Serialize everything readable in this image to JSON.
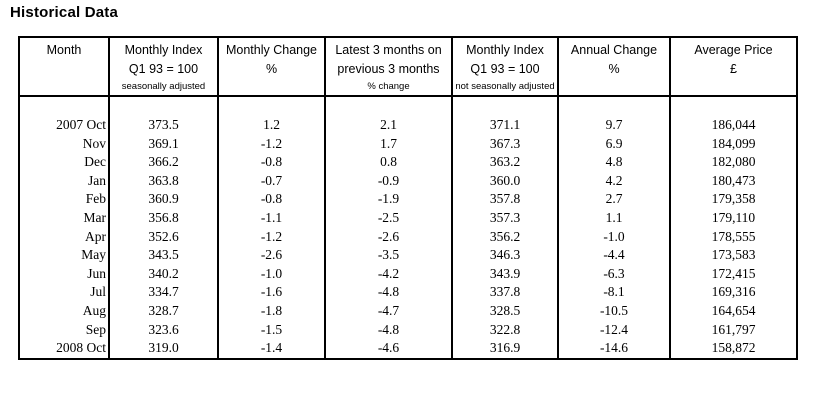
{
  "title": "Historical Data",
  "table": {
    "columns": [
      {
        "line1": "Month",
        "line2": "",
        "note": ""
      },
      {
        "line1": "Monthly Index",
        "line2": "Q1 93 = 100",
        "note": "seasonally adjusted"
      },
      {
        "line1": "Monthly Change",
        "line2": "%",
        "note": ""
      },
      {
        "line1": "Latest 3 months on",
        "line2": "previous 3 months",
        "note": "% change"
      },
      {
        "line1": "Monthly Index",
        "line2": "Q1 93 = 100",
        "note": "not seasonally adjusted"
      },
      {
        "line1": "Annual Change",
        "line2": "%",
        "note": ""
      },
      {
        "line1": "Average Price",
        "line2": "£",
        "note": ""
      }
    ],
    "rows": [
      {
        "month": "2007 Oct",
        "index_sa": "373.5",
        "monthly_change": "1.2",
        "three_month": "2.1",
        "index_nsa": "371.1",
        "annual_change": "9.7",
        "avg_price": "186,044"
      },
      {
        "month": "Nov",
        "index_sa": "369.1",
        "monthly_change": "-1.2",
        "three_month": "1.7",
        "index_nsa": "367.3",
        "annual_change": "6.9",
        "avg_price": "184,099"
      },
      {
        "month": "Dec",
        "index_sa": "366.2",
        "monthly_change": "-0.8",
        "three_month": "0.8",
        "index_nsa": "363.2",
        "annual_change": "4.8",
        "avg_price": "182,080"
      },
      {
        "month": "Jan",
        "index_sa": "363.8",
        "monthly_change": "-0.7",
        "three_month": "-0.9",
        "index_nsa": "360.0",
        "annual_change": "4.2",
        "avg_price": "180,473"
      },
      {
        "month": "Feb",
        "index_sa": "360.9",
        "monthly_change": "-0.8",
        "three_month": "-1.9",
        "index_nsa": "357.8",
        "annual_change": "2.7",
        "avg_price": "179,358"
      },
      {
        "month": "Mar",
        "index_sa": "356.8",
        "monthly_change": "-1.1",
        "three_month": "-2.5",
        "index_nsa": "357.3",
        "annual_change": "1.1",
        "avg_price": "179,110"
      },
      {
        "month": "Apr",
        "index_sa": "352.6",
        "monthly_change": "-1.2",
        "three_month": "-2.6",
        "index_nsa": "356.2",
        "annual_change": "-1.0",
        "avg_price": "178,555"
      },
      {
        "month": "May",
        "index_sa": "343.5",
        "monthly_change": "-2.6",
        "three_month": "-3.5",
        "index_nsa": "346.3",
        "annual_change": "-4.4",
        "avg_price": "173,583"
      },
      {
        "month": "Jun",
        "index_sa": "340.2",
        "monthly_change": "-1.0",
        "three_month": "-4.2",
        "index_nsa": "343.9",
        "annual_change": "-6.3",
        "avg_price": "172,415"
      },
      {
        "month": "Jul",
        "index_sa": "334.7",
        "monthly_change": "-1.6",
        "three_month": "-4.8",
        "index_nsa": "337.8",
        "annual_change": "-8.1",
        "avg_price": "169,316"
      },
      {
        "month": "Aug",
        "index_sa": "328.7",
        "monthly_change": "-1.8",
        "three_month": "-4.7",
        "index_nsa": "328.5",
        "annual_change": "-10.5",
        "avg_price": "164,654"
      },
      {
        "month": "Sep",
        "index_sa": "323.6",
        "monthly_change": "-1.5",
        "three_month": "-4.8",
        "index_nsa": "322.8",
        "annual_change": "-12.4",
        "avg_price": "161,797"
      },
      {
        "month": "2008 Oct",
        "index_sa": "319.0",
        "monthly_change": "-1.4",
        "three_month": "-4.6",
        "index_nsa": "316.9",
        "annual_change": "-14.6",
        "avg_price": "158,872"
      }
    ]
  }
}
